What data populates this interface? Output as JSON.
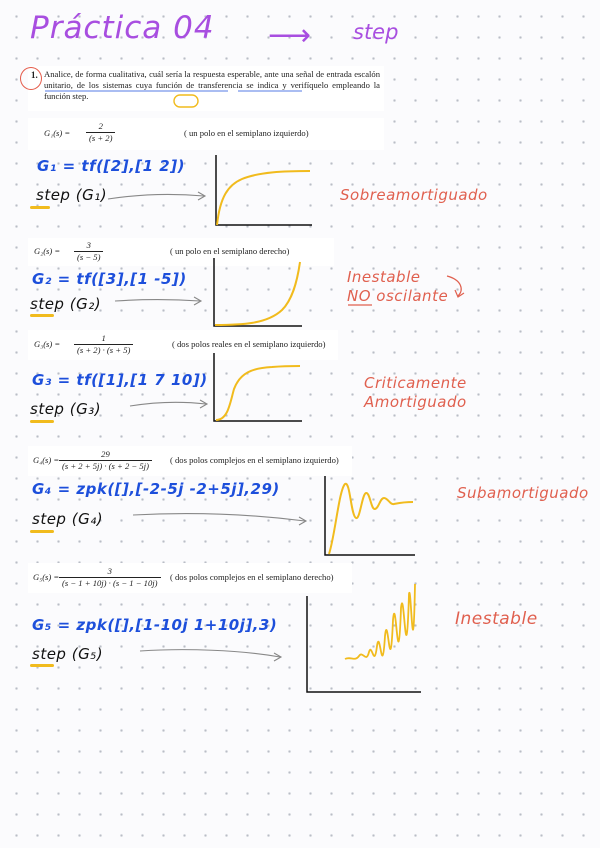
{
  "title": {
    "text": "Práctica 04",
    "arrow": "⟶",
    "subject": "step"
  },
  "task": {
    "number": "1.",
    "text": "Analice, de forma cualitativa, cuál sería la respuesta esperable, ante una señal de entrada escalón unitario, de los sistemas cuya función de transferencia se indica y verifíquelo empleando la función step."
  },
  "systems": [
    {
      "tf_lhs": "G₁(s) =",
      "tf_num": "2",
      "tf_den": "(s + 2)",
      "tf_note": "( un polo en el semiplano izquierdo)",
      "code": "G₁ = tf([2],[1 2])",
      "step_call": "step (G₁)",
      "result": "Sobreamortiguado",
      "response": "overdamped"
    },
    {
      "tf_lhs": "G₂(s) =",
      "tf_num": "3",
      "tf_den": "(s − 5)",
      "tf_note": "( un polo en el semiplano derecho)",
      "code": "G₂ = tf([3],[1 -5])",
      "step_call": "step (G₂)",
      "result_line1": "Inestable",
      "result_line2": "NO oscilante",
      "response": "unstable-monotonic"
    },
    {
      "tf_lhs": "G₃(s) =",
      "tf_num": "1",
      "tf_den": "(s + 2) · (s + 5)",
      "tf_note": "( dos polos reales en el semiplano izquierdo)",
      "code": "G₃ = tf([1],[1 7 10])",
      "step_call": "step (G₃)",
      "result_line1": "Criticamente",
      "result_line2": "Amortiguado",
      "response": "critically-damped"
    },
    {
      "tf_lhs": "G₄(s) =",
      "tf_num": "29",
      "tf_den": "(s + 2 + 5j) · (s + 2 − 5j)",
      "tf_note": "( dos polos complejos en el semiplano izquierdo)",
      "code": "G₄ = zpk([],[-2-5j  -2+5j],29)",
      "step_call": "step (G₄)",
      "result": "Subamortiguado",
      "response": "underdamped"
    },
    {
      "tf_lhs": "G₅(s) =",
      "tf_num": "3",
      "tf_den": "(s − 1 + 10j) · (s − 1 − 10j)",
      "tf_note": "( dos polos complejos en el semiplano derecho)",
      "code": "G₅ = zpk([],[1-10j  1+10j],3)",
      "step_call": "step (G₅)",
      "result": "Inestable",
      "response": "unstable-oscillating"
    }
  ],
  "colors": {
    "title": "#a84ee0",
    "code": "#1d4fdb",
    "result": "#e0604f",
    "highlight": "#f1bb1d",
    "curve": "#f1bb1d",
    "ink": "#111111",
    "dots": "#b9bdc6"
  }
}
